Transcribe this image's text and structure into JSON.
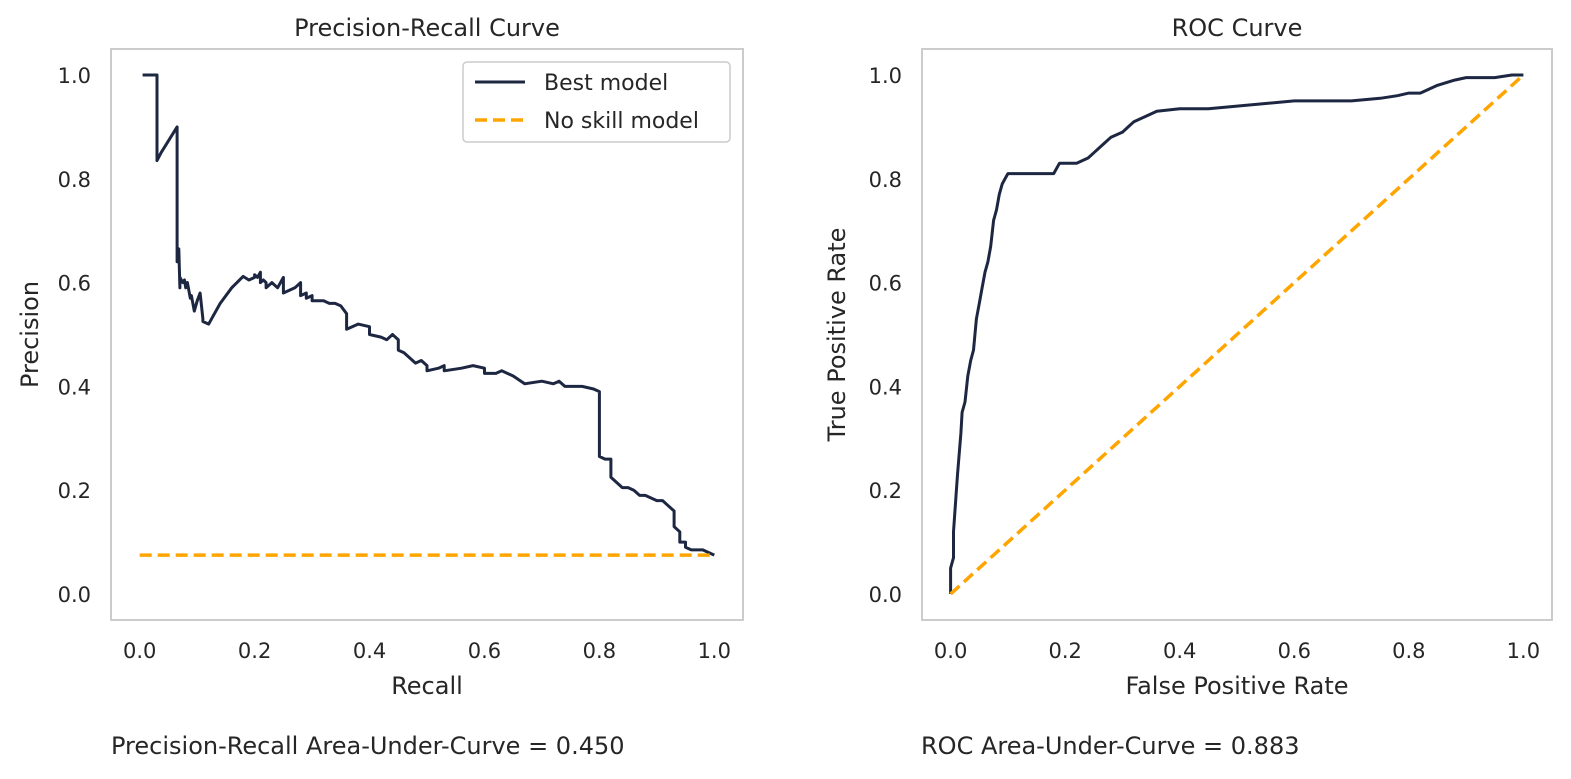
{
  "colors": {
    "model": "#1e2742",
    "noskill": "#ffa500",
    "spine": "#cccccc",
    "text": "#262626"
  },
  "chart_data": [
    {
      "type": "line",
      "title": "Precision-Recall Curve",
      "xlabel": "Recall",
      "ylabel": "Precision",
      "xlim": [
        -0.05,
        1.05
      ],
      "ylim": [
        -0.05,
        1.05
      ],
      "xticks": [
        "0.0",
        "0.2",
        "0.4",
        "0.6",
        "0.8",
        "1.0"
      ],
      "yticks": [
        "0.0",
        "0.2",
        "0.4",
        "0.6",
        "0.8",
        "1.0"
      ],
      "grid": false,
      "legend": "top-right",
      "series": [
        {
          "name": "Best model",
          "style": "solid",
          "x": [
            0.005,
            0.03,
            0.03,
            0.037,
            0.065,
            0.065,
            0.068,
            0.07,
            0.07,
            0.075,
            0.078,
            0.08,
            0.083,
            0.088,
            0.09,
            0.095,
            0.1,
            0.105,
            0.11,
            0.11,
            0.12,
            0.125,
            0.14,
            0.16,
            0.18,
            0.19,
            0.2,
            0.2,
            0.205,
            0.21,
            0.21,
            0.215,
            0.22,
            0.22,
            0.23,
            0.24,
            0.25,
            0.25,
            0.26,
            0.27,
            0.28,
            0.28,
            0.29,
            0.29,
            0.3,
            0.3,
            0.31,
            0.32,
            0.33,
            0.34,
            0.35,
            0.36,
            0.36,
            0.38,
            0.4,
            0.4,
            0.42,
            0.43,
            0.44,
            0.45,
            0.45,
            0.46,
            0.48,
            0.49,
            0.5,
            0.5,
            0.52,
            0.53,
            0.53,
            0.56,
            0.58,
            0.6,
            0.6,
            0.62,
            0.63,
            0.65,
            0.67,
            0.7,
            0.72,
            0.73,
            0.74,
            0.77,
            0.79,
            0.8,
            0.8,
            0.81,
            0.82,
            0.82,
            0.84,
            0.85,
            0.86,
            0.87,
            0.88,
            0.9,
            0.91,
            0.92,
            0.93,
            0.93,
            0.94,
            0.94,
            0.95,
            0.95,
            0.96,
            0.97,
            0.98,
            0.99,
            1.0
          ],
          "y": [
            1.0,
            1.0,
            0.835,
            0.85,
            0.9,
            0.64,
            0.665,
            0.59,
            0.61,
            0.6,
            0.605,
            0.59,
            0.6,
            0.57,
            0.575,
            0.545,
            0.565,
            0.58,
            0.53,
            0.525,
            0.52,
            0.53,
            0.56,
            0.59,
            0.612,
            0.605,
            0.61,
            0.615,
            0.61,
            0.62,
            0.6,
            0.605,
            0.6,
            0.59,
            0.6,
            0.59,
            0.61,
            0.58,
            0.585,
            0.59,
            0.6,
            0.575,
            0.58,
            0.57,
            0.575,
            0.565,
            0.565,
            0.565,
            0.56,
            0.56,
            0.555,
            0.54,
            0.51,
            0.52,
            0.515,
            0.5,
            0.495,
            0.49,
            0.5,
            0.49,
            0.47,
            0.465,
            0.445,
            0.45,
            0.44,
            0.43,
            0.435,
            0.44,
            0.43,
            0.435,
            0.44,
            0.435,
            0.425,
            0.425,
            0.43,
            0.42,
            0.405,
            0.41,
            0.405,
            0.41,
            0.4,
            0.4,
            0.395,
            0.39,
            0.265,
            0.26,
            0.26,
            0.225,
            0.205,
            0.205,
            0.2,
            0.19,
            0.19,
            0.18,
            0.18,
            0.17,
            0.16,
            0.13,
            0.12,
            0.1,
            0.1,
            0.09,
            0.085,
            0.085,
            0.085,
            0.08,
            0.075
          ]
        },
        {
          "name": "No skill model",
          "style": "dashed",
          "x": [
            0,
            1
          ],
          "y": [
            0.075,
            0.075
          ]
        }
      ]
    },
    {
      "type": "line",
      "title": "ROC Curve",
      "xlabel": "False Positive Rate",
      "ylabel": "True Positive Rate",
      "xlim": [
        -0.05,
        1.05
      ],
      "ylim": [
        -0.05,
        1.05
      ],
      "xticks": [
        "0.0",
        "0.2",
        "0.4",
        "0.6",
        "0.8",
        "1.0"
      ],
      "yticks": [
        "0.0",
        "0.2",
        "0.4",
        "0.6",
        "0.8",
        "1.0"
      ],
      "grid": false,
      "series": [
        {
          "name": "Best model",
          "style": "solid",
          "x": [
            0,
            0,
            0.005,
            0.005,
            0.01,
            0.012,
            0.015,
            0.018,
            0.02,
            0.025,
            0.03,
            0.035,
            0.04,
            0.045,
            0.05,
            0.055,
            0.06,
            0.065,
            0.07,
            0.075,
            0.08,
            0.085,
            0.09,
            0.095,
            0.1,
            0.105,
            0.12,
            0.15,
            0.18,
            0.19,
            0.2,
            0.22,
            0.24,
            0.25,
            0.26,
            0.27,
            0.28,
            0.3,
            0.31,
            0.32,
            0.33,
            0.34,
            0.35,
            0.36,
            0.4,
            0.45,
            0.5,
            0.55,
            0.6,
            0.65,
            0.7,
            0.75,
            0.78,
            0.8,
            0.82,
            0.85,
            0.88,
            0.9,
            0.95,
            0.98,
            1.0
          ],
          "y": [
            0,
            0.05,
            0.07,
            0.12,
            0.2,
            0.23,
            0.27,
            0.31,
            0.35,
            0.37,
            0.42,
            0.45,
            0.47,
            0.53,
            0.56,
            0.59,
            0.62,
            0.64,
            0.67,
            0.72,
            0.74,
            0.77,
            0.79,
            0.8,
            0.81,
            0.81,
            0.81,
            0.81,
            0.81,
            0.83,
            0.83,
            0.83,
            0.84,
            0.85,
            0.86,
            0.87,
            0.88,
            0.89,
            0.9,
            0.91,
            0.915,
            0.92,
            0.925,
            0.93,
            0.935,
            0.935,
            0.94,
            0.945,
            0.95,
            0.95,
            0.95,
            0.955,
            0.96,
            0.965,
            0.965,
            0.98,
            0.99,
            0.995,
            0.995,
            1.0,
            1.0
          ]
        },
        {
          "style": "dashed",
          "x": [
            0,
            1
          ],
          "y": [
            0,
            1
          ]
        }
      ]
    }
  ],
  "captions": {
    "pr_auc": "Precision-Recall Area-Under-Curve = 0.450",
    "roc_auc": "ROC Area-Under-Curve = 0.883"
  }
}
